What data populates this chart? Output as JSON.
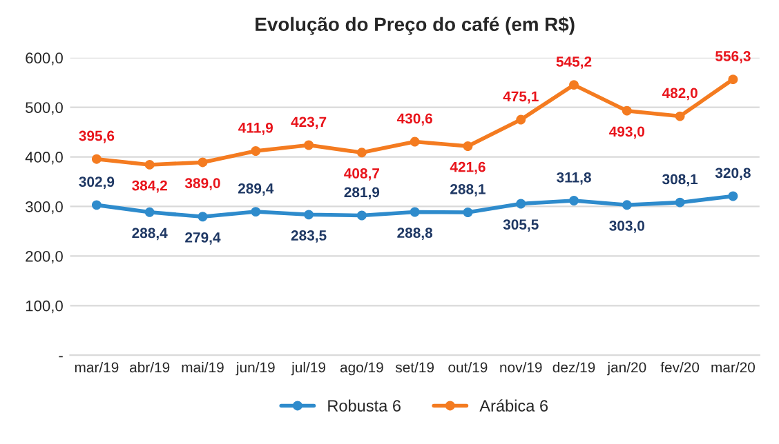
{
  "chart_data": {
    "type": "line",
    "title": "Evolução do Preço do café (em R$)",
    "categories": [
      "mar/19",
      "abr/19",
      "mai/19",
      "jun/19",
      "jul/19",
      "ago/19",
      "set/19",
      "out/19",
      "nov/19",
      "dez/19",
      "jan/20",
      "fev/20",
      "mar/20"
    ],
    "series": [
      {
        "name": "Robusta 6",
        "color": "#2e8bcc",
        "values": [
          302.9,
          288.4,
          279.4,
          289.4,
          283.5,
          281.9,
          288.8,
          288.1,
          305.5,
          311.8,
          303.0,
          308.1,
          320.8
        ],
        "value_labels": [
          "302,9",
          "288,4",
          "279,4",
          "289,4",
          "283,5",
          "281,9",
          "288,8",
          "288,1",
          "305,5",
          "311,8",
          "303,0",
          "308,1",
          "320,8"
        ]
      },
      {
        "name": "Arábica 6",
        "color": "#f47b20",
        "values": [
          395.6,
          384.2,
          389.0,
          411.9,
          423.7,
          408.7,
          430.6,
          421.6,
          475.1,
          545.2,
          493.0,
          482.0,
          556.3
        ],
        "value_labels": [
          "395,6",
          "384,2",
          "389,0",
          "411,9",
          "423,7",
          "408,7",
          "430,6",
          "421,6",
          "475,1",
          "545,2",
          "493,0",
          "482,0",
          "556,3"
        ]
      }
    ],
    "ylim": [
      0,
      600
    ],
    "yticks": [
      {
        "value": 0,
        "label": "-"
      },
      {
        "value": 100,
        "label": "100,0"
      },
      {
        "value": 200,
        "label": "200,0"
      },
      {
        "value": 300,
        "label": "300,0"
      },
      {
        "value": 400,
        "label": "400,0"
      },
      {
        "value": 500,
        "label": "500,0"
      },
      {
        "value": 600,
        "label": "600,0"
      }
    ],
    "grid": "y",
    "legend": "bottom",
    "marker": "circle",
    "line_style": "solid"
  }
}
